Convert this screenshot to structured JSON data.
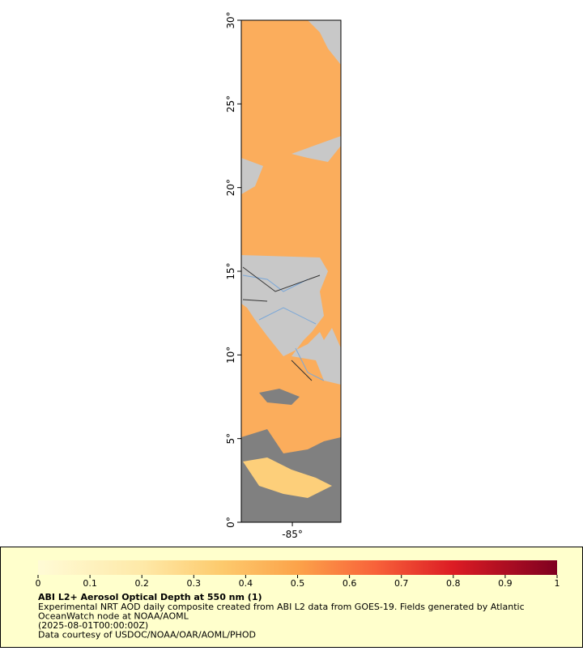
{
  "map": {
    "xlim": [
      -88.05,
      -82.1
    ],
    "ylim": [
      0,
      30
    ],
    "xticks": [
      {
        "value": -85,
        "label": "-85°"
      }
    ],
    "yticks": [
      {
        "value": 0,
        "label": "0°"
      },
      {
        "value": 5,
        "label": "5°"
      },
      {
        "value": 10,
        "label": "10°"
      },
      {
        "value": 15,
        "label": "15°"
      },
      {
        "value": 20,
        "label": "20°"
      },
      {
        "value": 25,
        "label": "25°"
      },
      {
        "value": 30,
        "label": "30°"
      }
    ]
  },
  "colorbar": {
    "lim": [
      0,
      1
    ],
    "ticks": [
      0,
      0.1,
      0.2,
      0.3,
      0.4,
      0.5,
      0.6,
      0.7,
      0.8,
      0.9,
      1
    ]
  },
  "legend": {
    "title": "ABI L2+ Aerosol Optical Depth at 550 nm (1)",
    "lines": [
      "Experimental NRT AOD daily composite created from ABI L2 data from GOES-19. Fields generated by Atlantic",
      "OceanWatch node at NOAA/AOML",
      "(2025-08-01T00:00:00Z)",
      "Data courtesy of USDOC/NOAA/OAR/AOML/PHOD"
    ]
  }
}
